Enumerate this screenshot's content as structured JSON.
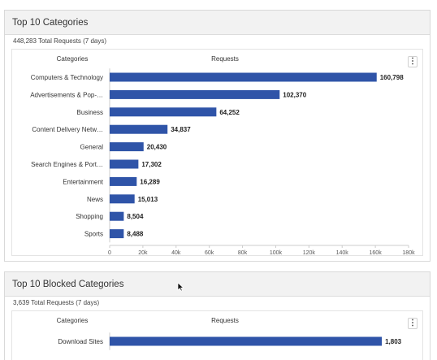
{
  "panels": [
    {
      "title": "Top 10 Categories",
      "subtitle": "448,283 Total Requests (7 days)",
      "menu_icon": "more-vertical-icon",
      "chart_data": {
        "type": "bar",
        "orientation": "horizontal",
        "category_header": "Categories",
        "value_header": "Requests",
        "categories": [
          "Computers & Technology",
          "Advertisements & Pop-…",
          "Business",
          "Content Delivery Netw…",
          "General",
          "Search Engines & Port…",
          "Entertainment",
          "News",
          "Shopping",
          "Sports"
        ],
        "values": [
          160798,
          102370,
          64252,
          34837,
          20430,
          17302,
          16289,
          15013,
          8504,
          8488
        ],
        "value_labels": [
          "160,798",
          "102,370",
          "64,252",
          "34,837",
          "20,430",
          "17,302",
          "16,289",
          "15,013",
          "8,504",
          "8,488"
        ],
        "x_ticks": [
          "0",
          "20k",
          "40k",
          "60k",
          "80k",
          "100k",
          "120k",
          "140k",
          "160k",
          "180k"
        ],
        "xlim": [
          0,
          180000
        ],
        "bar_color": "#2f54a8"
      }
    },
    {
      "title": "Top 10 Blocked Categories",
      "subtitle": "3,639 Total Requests (7 days)",
      "menu_icon": "more-vertical-icon",
      "chart_data": {
        "type": "bar",
        "orientation": "horizontal",
        "category_header": "Categories",
        "value_header": "Requests",
        "categories": [
          "Download Sites"
        ],
        "values": [
          1803
        ],
        "value_labels": [
          "1,803"
        ],
        "xlim": [
          0,
          1980
        ],
        "bar_color": "#2f54a8"
      }
    }
  ]
}
